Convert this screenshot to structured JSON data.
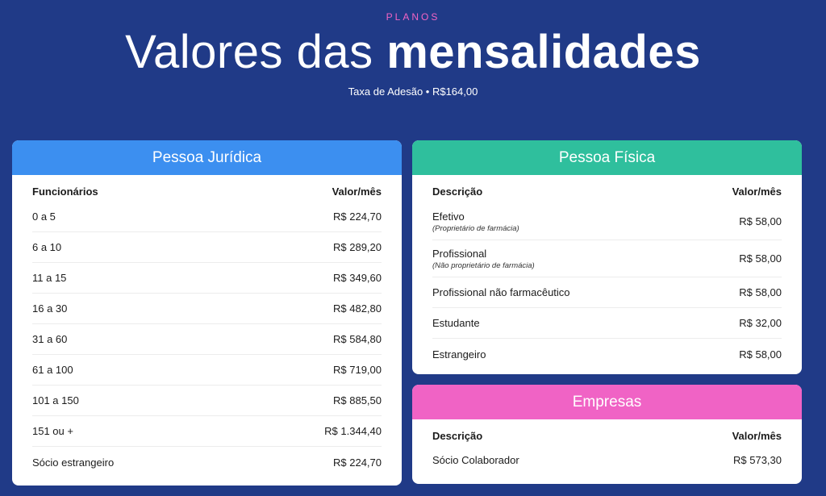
{
  "header": {
    "eyebrow": "PLANOS",
    "title_light": "Valores das",
    "title_bold": "mensalidades",
    "subtitle": "Taxa de Adesão • R$164,00"
  },
  "pessoa_juridica": {
    "title": "Pessoa Jurídica",
    "col_left": "Funcionários",
    "col_right": "Valor/mês",
    "rows": [
      {
        "label": "0 a 5",
        "value": "R$ 224,70"
      },
      {
        "label": "6 a 10",
        "value": "R$ 289,20"
      },
      {
        "label": "11 a 15",
        "value": "R$ 349,60"
      },
      {
        "label": "16 a 30",
        "value": "R$ 482,80"
      },
      {
        "label": "31 a 60",
        "value": "R$ 584,80"
      },
      {
        "label": "61 a 100",
        "value": "R$ 719,00"
      },
      {
        "label": "101 a 150",
        "value": "R$ 885,50"
      },
      {
        "label": "151 ou +",
        "value": "R$ 1.344,40"
      },
      {
        "label": "Sócio estrangeiro",
        "value": "R$ 224,70"
      }
    ]
  },
  "pessoa_fisica": {
    "title": "Pessoa Física",
    "col_left": "Descrição",
    "col_right": "Valor/mês",
    "rows": [
      {
        "label": "Efetivo",
        "note": "(Proprietário de farmácia)",
        "value": "R$ 58,00"
      },
      {
        "label": "Profissional",
        "note": "(Não proprietário de farmácia)",
        "value": "R$ 58,00"
      },
      {
        "label": "Profissional não farmacêutico",
        "value": "R$ 58,00"
      },
      {
        "label": "Estudante",
        "value": "R$ 32,00"
      },
      {
        "label": "Estrangeiro",
        "value": "R$ 58,00"
      }
    ]
  },
  "empresas": {
    "title": "Empresas",
    "col_left": "Descrição",
    "col_right": "Valor/mês",
    "rows": [
      {
        "label": "Sócio Colaborador",
        "value": "R$ 573,30"
      }
    ]
  },
  "colors": {
    "background": "#203a87",
    "accent_pink": "#f364c4",
    "pj_header": "#3c8ff0",
    "pf_header": "#2fbf9d",
    "emp_header": "#f063c5"
  }
}
